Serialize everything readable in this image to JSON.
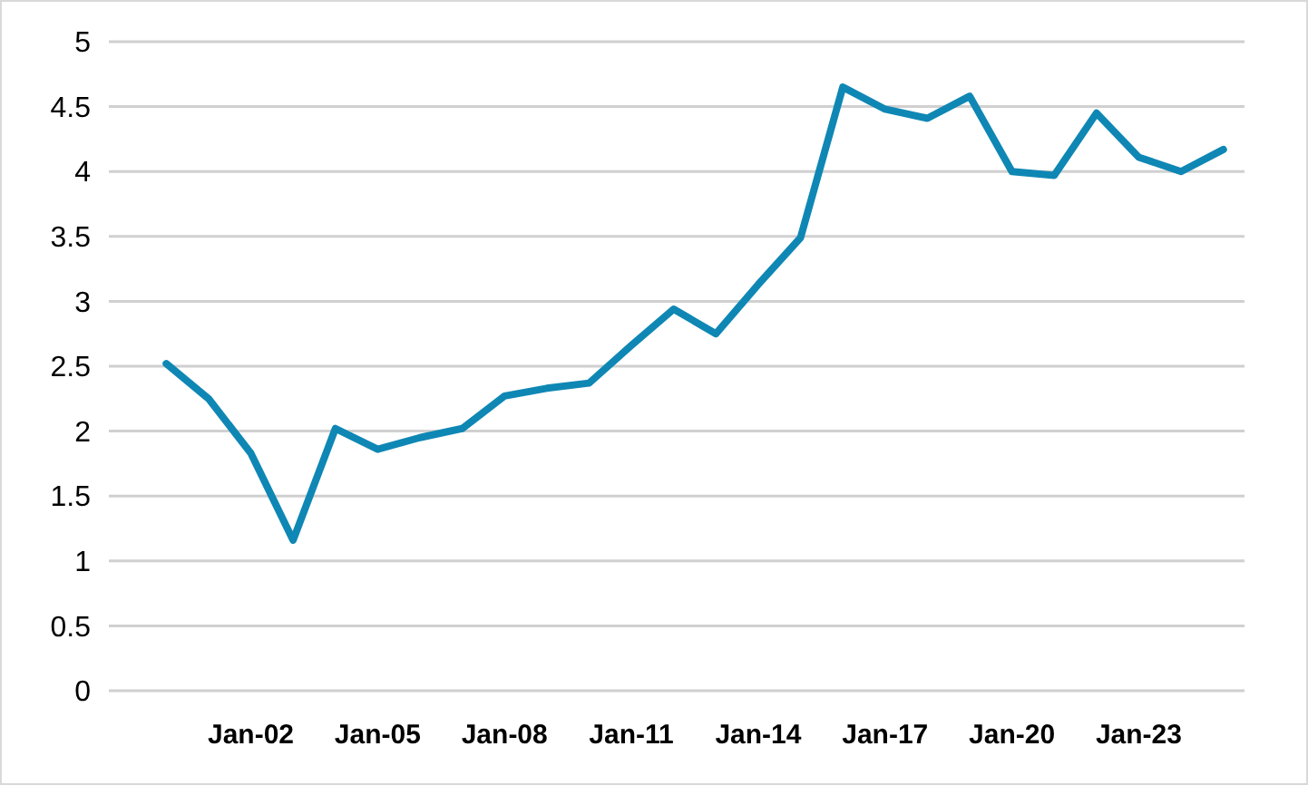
{
  "chart_data": {
    "type": "line",
    "categories": [
      null,
      null,
      "Jan-02",
      null,
      null,
      "Jan-05",
      null,
      null,
      "Jan-08",
      null,
      null,
      "Jan-11",
      null,
      null,
      "Jan-14",
      null,
      null,
      "Jan-17",
      null,
      null,
      "Jan-20",
      null,
      null,
      "Jan-23",
      null,
      null
    ],
    "series": [
      {
        "color": "#0f87b4",
        "values": [
          2.52,
          2.25,
          1.83,
          1.16,
          2.02,
          1.86,
          1.95,
          2.02,
          2.27,
          2.33,
          2.37,
          2.66,
          2.94,
          2.75,
          3.13,
          3.49,
          4.65,
          4.48,
          4.41,
          4.58,
          4.0,
          3.97,
          4.45,
          4.11,
          4.0,
          4.17
        ]
      }
    ],
    "ylim": [
      0,
      5
    ],
    "yticks": [
      0,
      0.5,
      1,
      1.5,
      2,
      2.5,
      3,
      3.5,
      4,
      4.5,
      5
    ],
    "grid": "y",
    "marker": "none",
    "line_style": "solid"
  }
}
